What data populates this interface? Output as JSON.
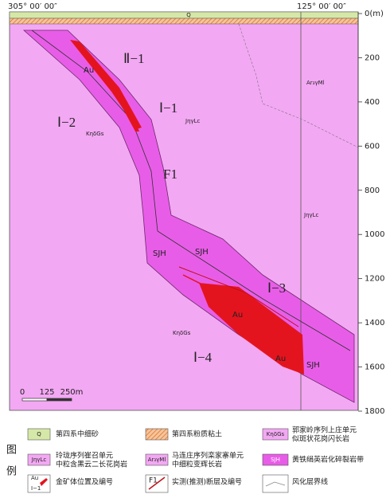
{
  "header": {
    "left_coord": "305° 00′ 00″",
    "right_coord": "125° 00′ 00″"
  },
  "section": {
    "layer_q": "Q",
    "labels": [
      "Au",
      "Ⅱ−1",
      "Ⅰ−1",
      "JηγLc",
      "Ⅰ−2",
      "KηδGs",
      "F1",
      "Ar₃γMl",
      "JηγLc",
      "SJH",
      "SJH",
      "Ⅰ−3",
      "Au",
      "KηδGs",
      "Ⅰ−4",
      "Au",
      "SJH"
    ]
  },
  "depth_axis": {
    "ticks": [
      {
        "value": 0,
        "label": "0(m)"
      },
      200,
      400,
      600,
      800,
      1000,
      1200,
      1400,
      1600,
      1800
    ]
  },
  "scale_bar": {
    "labels": [
      "0",
      "125",
      "250m"
    ]
  },
  "legend": {
    "title": [
      "图",
      "例"
    ],
    "items": [
      {
        "symbol": "Q",
        "text": [
          "第四系中细砂"
        ]
      },
      {
        "text": [
          "第四系粉质粘土"
        ]
      },
      {
        "symbol": "KηδGs",
        "text": [
          "郭家岭序列上庄单元",
          "似斑状花岗闪长岩"
        ]
      },
      {
        "symbol": "JηγLc",
        "text": [
          "玲珑序列崔召单元",
          "中粒含黑云二长花岗岩"
        ]
      },
      {
        "symbol": "Ar₃γMl",
        "text": [
          "马连庄序列栾家寨单元",
          "中细粒变辉长岩"
        ]
      },
      {
        "symbol": "SJH",
        "text": [
          "黄铁绢英岩化碎裂岩带"
        ]
      },
      {
        "symbol": [
          "Au",
          "Ⅰ−1"
        ],
        "text": [
          "金矿体位置及编号"
        ]
      },
      {
        "symbol": "F1",
        "text": [
          "实测(推测)断层及编号"
        ]
      },
      {
        "text": [
          "风化层界线"
        ]
      }
    ]
  }
}
